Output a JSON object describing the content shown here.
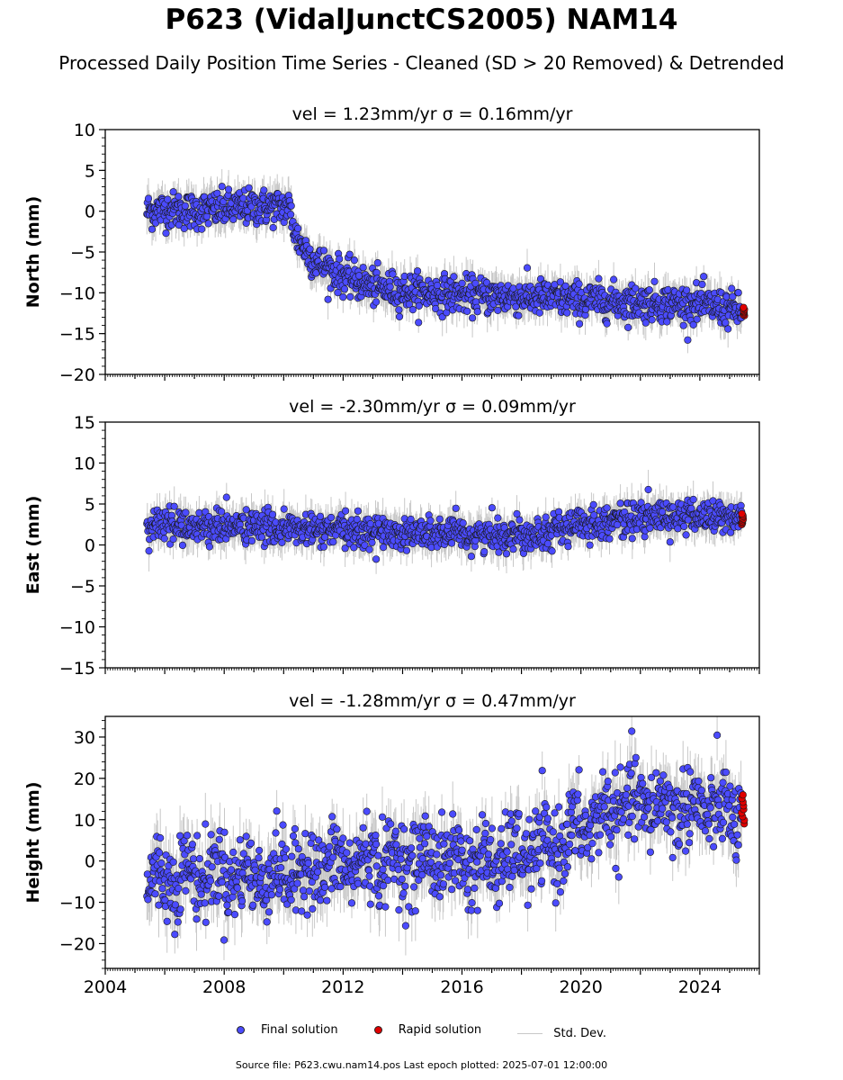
{
  "title": "P623 (VidalJunctCS2005) NAM14",
  "subtitle": "Processed Daily Position Time Series - Cleaned (SD > 20 Removed) & Detrended",
  "footer": "Source file: P623.cwu.nam14.pos  Last epoch plotted: 2025-07-01 12:00:00",
  "colors": {
    "final": "#4b4bff",
    "rapid": "#e00000",
    "stddev": "#c8c8c8"
  },
  "legend": {
    "final": "Final solution",
    "rapid": "Rapid solution",
    "stddev": "Std. Dev."
  },
  "chart_data": [
    {
      "type": "scatter",
      "title": "vel = 1.23mm/yr   σ = 0.16mm/yr",
      "ylabel": "North (mm)",
      "xlim": [
        2004,
        2026
      ],
      "ylim": [
        -20,
        10
      ],
      "yticks": [
        10,
        5,
        0,
        -5,
        -10,
        -15,
        -20
      ],
      "series": [
        {
          "name": "Final solution",
          "x": [
            2005.4,
            2006,
            2007,
            2008,
            2009,
            2010.2,
            2010.4,
            2011,
            2012,
            2013,
            2014,
            2015,
            2016,
            2017,
            2018,
            2019,
            2020,
            2021,
            2022,
            2023,
            2024,
            2025,
            2025.4
          ],
          "y": [
            0,
            0.2,
            0,
            0.3,
            0.5,
            0.5,
            -3,
            -6,
            -8,
            -9.3,
            -9.8,
            -10,
            -10.2,
            -10.4,
            -10.5,
            -10.7,
            -10.9,
            -11,
            -11.2,
            -11.3,
            -11.4,
            -12,
            -12.3
          ]
        },
        {
          "name": "Rapid solution",
          "x": [
            2025.4,
            2025.45,
            2025.5
          ],
          "y": [
            -11.8,
            -12.3,
            -12.8
          ]
        }
      ]
    },
    {
      "type": "scatter",
      "title": "vel = -2.30mm/yr   σ = 0.09mm/yr",
      "ylabel": "East (mm)",
      "xlim": [
        2004,
        2026
      ],
      "ylim": [
        -15,
        15
      ],
      "yticks": [
        15,
        10,
        5,
        0,
        -5,
        -10,
        -15
      ],
      "series": [
        {
          "name": "Final solution",
          "x": [
            2005.4,
            2006,
            2007,
            2008,
            2009,
            2010,
            2011,
            2012,
            2013,
            2014,
            2015,
            2016,
            2017,
            2018,
            2019,
            2020,
            2021,
            2022,
            2023,
            2024,
            2025.4
          ],
          "y": [
            2.5,
            2.5,
            2.3,
            2.3,
            2.2,
            2,
            1.8,
            1.7,
            1.6,
            1.5,
            1.3,
            1.2,
            1.2,
            1.3,
            1.8,
            2.5,
            3,
            3.3,
            3.5,
            3.5,
            3.3
          ]
        },
        {
          "name": "Rapid solution",
          "x": [
            2025.4,
            2025.45,
            2025.5
          ],
          "y": [
            2.5,
            3.2,
            3.8
          ]
        }
      ]
    },
    {
      "type": "scatter",
      "title": "vel = -1.28mm/yr   σ = 0.47mm/yr",
      "ylabel": "Height (mm)",
      "xlim": [
        2004,
        2026
      ],
      "ylim": [
        -26,
        35
      ],
      "yticks": [
        30,
        20,
        10,
        0,
        -10,
        -20
      ],
      "xticks": [
        2004,
        2008,
        2012,
        2016,
        2020,
        2024
      ],
      "series": [
        {
          "name": "Final solution",
          "x": [
            2005.4,
            2006,
            2007,
            2008,
            2009,
            2010,
            2011,
            2012,
            2013,
            2014,
            2015,
            2016,
            2017,
            2018,
            2019,
            2020,
            2021,
            2022,
            2023,
            2024,
            2025.4
          ],
          "y": [
            -5,
            -4,
            -3,
            -3,
            -4,
            -3,
            -2,
            -1,
            0,
            0,
            1,
            0,
            -1,
            2,
            3,
            8,
            12,
            14,
            13,
            13,
            11
          ]
        },
        {
          "name": "Rapid solution",
          "x": [
            2025.4,
            2025.45,
            2025.5
          ],
          "y": [
            9,
            12.5,
            16
          ]
        }
      ]
    }
  ]
}
